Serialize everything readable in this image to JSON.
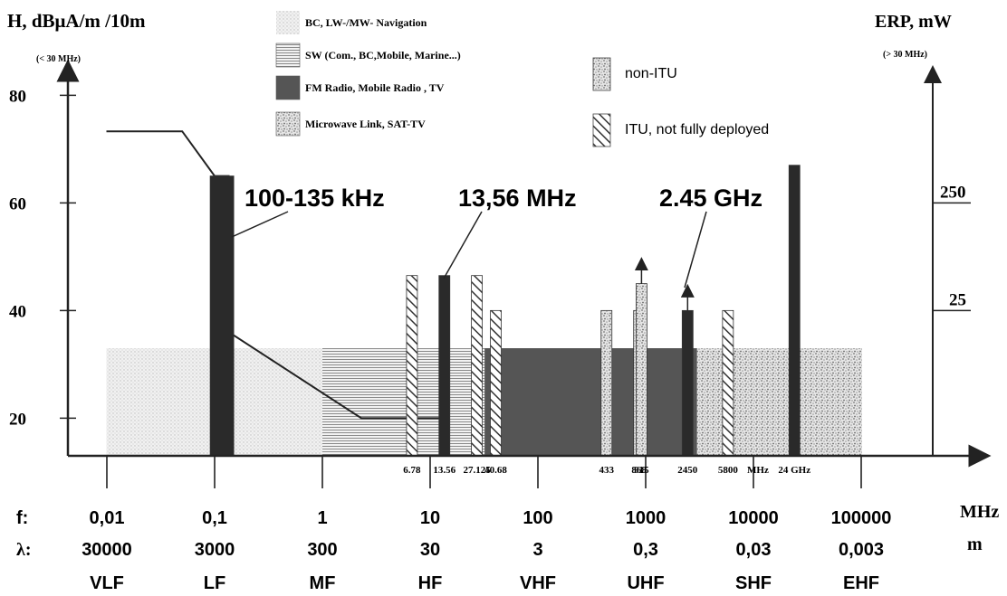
{
  "chart_data": {
    "type": "bar",
    "y_axis_left": {
      "label": "H, dBμA/m /10m",
      "note": "(< 30 MHz)",
      "ticks": [
        20,
        40,
        60,
        80
      ],
      "range": [
        13,
        86
      ]
    },
    "y_axis_right": {
      "label": "ERP, mW",
      "note": "(> 30 MHz)",
      "ticks": [
        {
          "text": "25",
          "at_left_value": 40
        },
        {
          "text": "250",
          "at_left_value": 60
        }
      ]
    },
    "x_axis": {
      "scale": "log",
      "unit_label": "MHz",
      "wavelength_unit": "m",
      "row_f_label": "f:",
      "row_lambda_label": "λ:",
      "decades": [
        {
          "f_value": 0.01,
          "f": "0,01",
          "lambda": "30000",
          "band": "VLF"
        },
        {
          "f_value": 0.1,
          "f": "0,1",
          "lambda": "3000",
          "band": "LF"
        },
        {
          "f_value": 1,
          "f": "1",
          "lambda": "300",
          "band": "MF"
        },
        {
          "f_value": 10,
          "f": "10",
          "lambda": "30",
          "band": "HF"
        },
        {
          "f_value": 100,
          "f": "100",
          "lambda": "3",
          "band": "VHF"
        },
        {
          "f_value": 1000,
          "f": "1000",
          "lambda": "0,3",
          "band": "UHF"
        },
        {
          "f_value": 10000,
          "f": "10000",
          "lambda": "0,03",
          "band": "SHF"
        },
        {
          "f_value": 100000,
          "f": "100000",
          "lambda": "0,003",
          "band": "EHF"
        }
      ],
      "freq_labels": [
        {
          "text": "6.78",
          "mhz": 6.78
        },
        {
          "text": "13.56",
          "mhz": 13.56
        },
        {
          "text": "27.125",
          "mhz": 27.125
        },
        {
          "text": "40.68",
          "mhz": 40.68
        },
        {
          "text": "433",
          "mhz": 433
        },
        {
          "text": "868",
          "mhz": 868
        },
        {
          "text": "915",
          "mhz": 915
        },
        {
          "text": "2450",
          "mhz": 2450
        },
        {
          "text": "5800",
          "mhz": 5800
        },
        {
          "text": "MHz",
          "mhz": 11000
        },
        {
          "text": "24 GHz",
          "mhz": 24000
        }
      ]
    },
    "bands": [
      {
        "legend": "BC,  LW-/MW- Navigation",
        "pattern": "dots",
        "from_mhz": 0.0099,
        "to_mhz": 1.0,
        "level": 33
      },
      {
        "legend": "SW (Com., BC,Mobile, Marine...)",
        "pattern": "hlines",
        "from_mhz": 1.0,
        "to_mhz": 32,
        "level": 33
      },
      {
        "legend": "FM  Radio, Mobile Radio , TV",
        "pattern": "dark",
        "from_mhz": 32,
        "to_mhz": 3000,
        "level": 33
      },
      {
        "legend": "Microwave Link, SAT-TV",
        "pattern": "speckle",
        "from_mhz": 3000,
        "to_mhz": 210000,
        "level": 33
      }
    ],
    "limit_line": [
      {
        "mhz": 0.0099,
        "level": 73.3
      },
      {
        "mhz": 0.05,
        "level": 73.3
      },
      {
        "mhz": 0.1,
        "level": 65
      },
      {
        "mhz": 0.135,
        "level": 65
      },
      {
        "mhz": 0.135,
        "level": 36
      },
      {
        "mhz": 2.3,
        "level": 20
      },
      {
        "mhz": 13.56,
        "level": 20
      }
    ],
    "bars": [
      {
        "mhz": 0.117,
        "level": 65,
        "style": "solid"
      },
      {
        "mhz": 6.78,
        "level": 46.5,
        "style": "hatch"
      },
      {
        "mhz": 13.56,
        "level": 46.5,
        "style": "solid"
      },
      {
        "mhz": 27.125,
        "level": 46.5,
        "style": "hatch"
      },
      {
        "mhz": 40.68,
        "level": 40,
        "style": "hatch"
      },
      {
        "mhz": 433,
        "level": 40,
        "style": "speckle"
      },
      {
        "mhz": 868,
        "level": 40,
        "style": "speckle"
      },
      {
        "mhz": 915,
        "level": 45,
        "style": "speckle",
        "arrow": true
      },
      {
        "mhz": 2450,
        "level": 40,
        "style": "solid",
        "arrow": true
      },
      {
        "mhz": 5800,
        "level": 40,
        "style": "hatch"
      },
      {
        "mhz": 24000,
        "level": 67,
        "style": "solid"
      }
    ],
    "callouts": [
      {
        "text": "100-135 kHz",
        "target_mhz": 0.135,
        "target_level": 42
      },
      {
        "text": "13,56 MHz",
        "target_mhz": 13.56,
        "target_level": 46
      },
      {
        "text": "2.45 GHz",
        "target_mhz": 2450,
        "target_level": 43
      }
    ],
    "legend_extra": [
      {
        "label": "non-ITU",
        "pattern": "speckle"
      },
      {
        "label": "ITU, not fully deployed",
        "pattern": "hatch"
      }
    ],
    "colors": {
      "axis": "#222222",
      "dark_band": "#555555",
      "solid_bar": "#2a2a2a"
    }
  }
}
